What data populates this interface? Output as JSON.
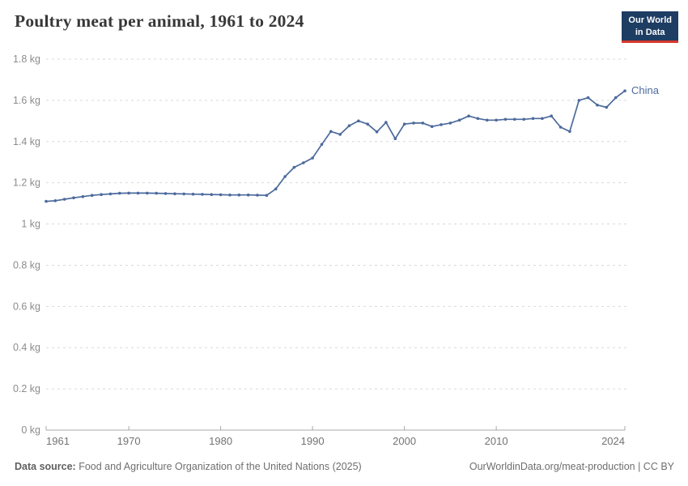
{
  "header": {
    "title": "Poultry meat per animal, 1961 to 2024",
    "logo": {
      "line1": "Our World",
      "line2": "in Data",
      "bg_color": "#1d3d63",
      "accent_color": "#d7382e"
    }
  },
  "chart_data": {
    "type": "line",
    "title": "Poultry meat per animal, 1961 to 2024",
    "unit": "kg",
    "xlim": [
      1961,
      2024
    ],
    "ylim": [
      0,
      1.8
    ],
    "x_ticks": [
      1961,
      1970,
      1980,
      1990,
      2000,
      2010,
      2024
    ],
    "y_ticks": [
      0,
      0.2,
      0.4,
      0.6,
      0.8,
      1,
      1.2,
      1.4,
      1.6,
      1.8
    ],
    "grid": "horizontal-dashed",
    "legend_position": "end-of-line",
    "series": [
      {
        "name": "China",
        "color": "#4C6A9C",
        "x": [
          1961,
          1962,
          1963,
          1964,
          1965,
          1966,
          1967,
          1968,
          1969,
          1970,
          1971,
          1972,
          1973,
          1974,
          1975,
          1976,
          1977,
          1978,
          1979,
          1980,
          1981,
          1982,
          1983,
          1984,
          1985,
          1986,
          1987,
          1988,
          1989,
          1990,
          1991,
          1992,
          1993,
          1994,
          1995,
          1996,
          1997,
          1998,
          1999,
          2000,
          2001,
          2002,
          2003,
          2004,
          2005,
          2006,
          2007,
          2008,
          2009,
          2010,
          2011,
          2012,
          2013,
          2014,
          2015,
          2016,
          2017,
          2018,
          2019,
          2020,
          2021,
          2022,
          2023,
          2024
        ],
        "values": [
          1.11,
          1.113,
          1.12,
          1.127,
          1.133,
          1.139,
          1.143,
          1.146,
          1.149,
          1.15,
          1.15,
          1.15,
          1.149,
          1.148,
          1.147,
          1.146,
          1.145,
          1.144,
          1.143,
          1.142,
          1.141,
          1.141,
          1.141,
          1.14,
          1.139,
          1.17,
          1.23,
          1.275,
          1.297,
          1.32,
          1.386,
          1.449,
          1.435,
          1.477,
          1.5,
          1.485,
          1.447,
          1.493,
          1.414,
          1.485,
          1.49,
          1.49,
          1.473,
          1.482,
          1.49,
          1.504,
          1.524,
          1.512,
          1.504,
          1.504,
          1.508,
          1.508,
          1.508,
          1.512,
          1.512,
          1.524,
          1.47,
          1.449,
          1.6,
          1.613,
          1.577,
          1.566,
          1.613,
          1.646
        ]
      }
    ]
  },
  "footer": {
    "source_label": "Data source:",
    "source_text": " Food and Agriculture Organization of the United Nations (2025)",
    "url_text": "OurWorldinData.org/meat-production | CC BY"
  }
}
